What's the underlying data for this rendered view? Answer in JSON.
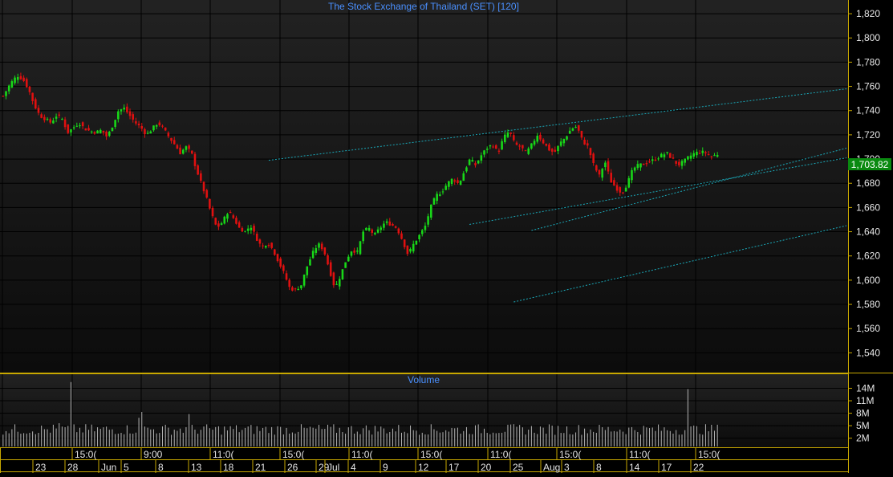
{
  "colors": {
    "background": "#000000",
    "panel_top": "#222222",
    "panel_bottom": "#0c0c0c",
    "grid": "#000000",
    "axis_line": "#c8a800",
    "up": "#18d818",
    "down": "#e01010",
    "channel": "#1aa8b8",
    "title": "#4a90ff",
    "last_price_bg": "#0a8a10",
    "volume_bar": "#b4b4b4",
    "axis_text": "#e6e6e6"
  },
  "chart_data": [
    {
      "type": "candlestick",
      "title": "The Stock Exchange of Thailand (SET) [120]",
      "ylim": [
        1525,
        1830
      ],
      "y_ticks": [
        "1,820",
        "1,800",
        "1,780",
        "1,760",
        "1,740",
        "1,720",
        "1,700",
        "1,680",
        "1,660",
        "1,640",
        "1,620",
        "1,600",
        "1,580",
        "1,560",
        "1,540"
      ],
      "y_tick_values": [
        1820,
        1800,
        1780,
        1760,
        1740,
        1720,
        1700,
        1680,
        1660,
        1640,
        1620,
        1600,
        1580,
        1560,
        1540
      ],
      "last_price": 1703.82,
      "last_price_label": "1,703.82",
      "x_index_range": [
        0,
        242
      ],
      "close_path": [
        [
          0,
          1752
        ],
        [
          5,
          1762
        ],
        [
          10,
          1769
        ],
        [
          14,
          1766
        ],
        [
          18,
          1758
        ],
        [
          22,
          1745
        ],
        [
          26,
          1736
        ],
        [
          30,
          1733
        ],
        [
          34,
          1730
        ],
        [
          38,
          1736
        ],
        [
          42,
          1733
        ],
        [
          46,
          1722
        ],
        [
          50,
          1726
        ],
        [
          54,
          1730
        ],
        [
          58,
          1725
        ],
        [
          62,
          1723
        ],
        [
          66,
          1722
        ],
        [
          70,
          1724
        ],
        [
          74,
          1718
        ],
        [
          78,
          1728
        ],
        [
          82,
          1740
        ],
        [
          86,
          1742
        ],
        [
          90,
          1736
        ],
        [
          94,
          1730
        ],
        [
          98,
          1726
        ],
        [
          102,
          1720
        ],
        [
          106,
          1725
        ],
        [
          110,
          1730
        ],
        [
          114,
          1725
        ],
        [
          118,
          1718
        ],
        [
          122,
          1712
        ],
        [
          126,
          1705
        ],
        [
          130,
          1710
        ],
        [
          134,
          1705
        ],
        [
          137,
          1693
        ],
        [
          140,
          1683
        ],
        [
          144,
          1670
        ],
        [
          148,
          1655
        ],
        [
          152,
          1643
        ],
        [
          156,
          1648
        ],
        [
          160,
          1657
        ],
        [
          164,
          1651
        ],
        [
          168,
          1643
        ],
        [
          172,
          1640
        ],
        [
          176,
          1645
        ],
        [
          180,
          1635
        ],
        [
          184,
          1627
        ],
        [
          188,
          1631
        ],
        [
          192,
          1625
        ],
        [
          196,
          1615
        ],
        [
          200,
          1605
        ],
        [
          204,
          1593
        ],
        [
          208,
          1592
        ],
        [
          212,
          1596
        ],
        [
          216,
          1611
        ],
        [
          220,
          1622
        ],
        [
          224,
          1630
        ],
        [
          228,
          1625
        ],
        [
          232,
          1609
        ],
        [
          236,
          1593
        ],
        [
          240,
          1604
        ],
        [
          244,
          1617
        ],
        [
          248,
          1625
        ],
        [
          252,
          1623
        ],
        [
          256,
          1640
        ],
        [
          260,
          1643
        ],
        [
          264,
          1637
        ],
        [
          268,
          1643
        ],
        [
          272,
          1648
        ],
        [
          276,
          1646
        ],
        [
          280,
          1643
        ],
        [
          284,
          1633
        ],
        [
          288,
          1621
        ],
        [
          292,
          1630
        ],
        [
          296,
          1637
        ],
        [
          300,
          1644
        ],
        [
          304,
          1660
        ],
        [
          308,
          1670
        ],
        [
          312,
          1673
        ],
        [
          316,
          1680
        ],
        [
          320,
          1684
        ],
        [
          324,
          1679
        ],
        [
          328,
          1690
        ],
        [
          332,
          1700
        ],
        [
          336,
          1695
        ],
        [
          340,
          1703
        ],
        [
          344,
          1709
        ],
        [
          348,
          1712
        ],
        [
          352,
          1705
        ],
        [
          356,
          1718
        ],
        [
          360,
          1723
        ],
        [
          364,
          1712
        ],
        [
          368,
          1710
        ],
        [
          372,
          1705
        ],
        [
          376,
          1712
        ],
        [
          380,
          1720
        ],
        [
          384,
          1714
        ],
        [
          388,
          1708
        ],
        [
          392,
          1705
        ],
        [
          396,
          1713
        ],
        [
          400,
          1718
        ],
        [
          404,
          1725
        ],
        [
          408,
          1727
        ],
        [
          412,
          1715
        ],
        [
          416,
          1710
        ],
        [
          420,
          1695
        ],
        [
          424,
          1686
        ],
        [
          428,
          1698
        ],
        [
          432,
          1682
        ],
        [
          436,
          1676
        ],
        [
          440,
          1672
        ],
        [
          444,
          1680
        ],
        [
          448,
          1692
        ],
        [
          452,
          1695
        ],
        [
          456,
          1696
        ],
        [
          460,
          1698
        ],
        [
          464,
          1700
        ],
        [
          468,
          1703
        ],
        [
          472,
          1705
        ],
        [
          476,
          1700
        ],
        [
          480,
          1695
        ],
        [
          484,
          1698
        ],
        [
          488,
          1702
        ],
        [
          492,
          1705
        ],
        [
          496,
          1706
        ],
        [
          500,
          1705
        ],
        [
          504,
          1702
        ],
        [
          508,
          1704
        ]
      ],
      "total_bars": 243,
      "channel_lines": [
        {
          "from": [
            173,
            1582
          ],
          "to": [
            243,
            1645
          ]
        },
        {
          "from": [
            158,
            1646
          ],
          "to": [
            243,
            1701
          ]
        },
        {
          "from": [
            179,
            1641
          ],
          "to": [
            243,
            1709
          ]
        },
        {
          "from": [
            90,
            1699
          ],
          "to": [
            243,
            1758
          ]
        }
      ]
    },
    {
      "type": "bar",
      "title": "Volume",
      "ylim": [
        0,
        17
      ],
      "y_ticks": [
        "14M",
        "11M",
        "8M",
        "5M",
        "2M"
      ],
      "y_tick_values": [
        14,
        11,
        8,
        5,
        2
      ],
      "unit": "millions",
      "spikes": [
        [
          23,
          15.5
        ],
        [
          232,
          13.8
        ],
        [
          47,
          8.3
        ],
        [
          63,
          7.8
        ],
        [
          46,
          6.9
        ],
        [
          19,
          5.6
        ],
        [
          243,
          4.0
        ]
      ],
      "baseline_range": [
        2.8,
        5.4
      ]
    }
  ],
  "time_axis": {
    "upper_labels": [
      "15:0(",
      "9:00",
      "11:0(",
      "15:0(",
      "11:0(",
      "15:0(",
      "11:0(",
      "15:0(",
      "11:0(",
      "15:0("
    ],
    "lower_labels": [
      "23",
      "28",
      "Jun",
      "5",
      "8",
      "13",
      "18",
      "21",
      "26",
      "29",
      "Jul",
      "4",
      "9",
      "12",
      "17",
      "20",
      "25",
      "Aug",
      "3",
      "8",
      "14",
      "17",
      "22"
    ]
  }
}
